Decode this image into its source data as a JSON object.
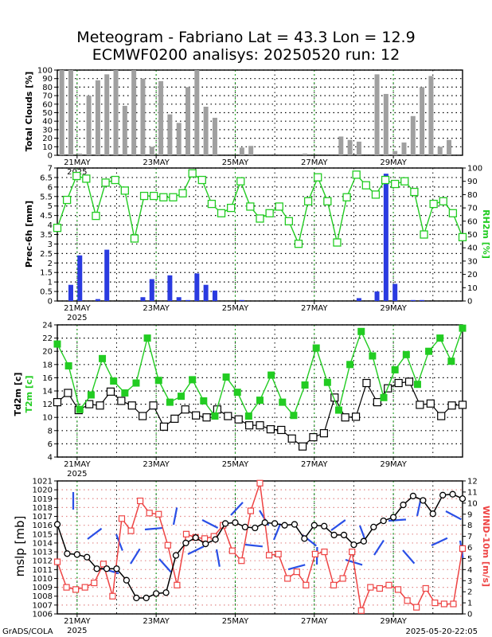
{
  "title_line1": "Meteogram - Fabriano Lat = 43.3 Lon = 12.9",
  "title_line2": "ECMWF0200 analisys: 20250520 run: 12",
  "footer_left": "GrADS/COLA",
  "footer_right": "2025-05-20-22:05",
  "colors": {
    "bars_gray": "#a0a0a0",
    "bars_blue": "#2a3be0",
    "green": "#22cc22",
    "red": "#ee4444",
    "black": "#000000",
    "wind": "#2a4fe6"
  },
  "x_axis": {
    "labels": [
      "21MAY",
      "23MAY",
      "25MAY",
      "27MAY",
      "29MAY"
    ],
    "label_day_index": [
      1,
      3,
      5,
      7,
      9
    ],
    "year": "2025",
    "steps_per_day": 4,
    "num_steps": 41
  },
  "chart_data": [
    {
      "type": "bar",
      "panel": "clouds",
      "ylabel": "Total Clouds [%]",
      "ylim": [
        0,
        100
      ],
      "yticks": [
        "0",
        "10",
        "20",
        "30",
        "40",
        "50",
        "60",
        "70",
        "80",
        "90",
        "100"
      ],
      "values": [
        100,
        100,
        2,
        70,
        88,
        95,
        100,
        58,
        100,
        90,
        10,
        87,
        48,
        38,
        80,
        100,
        57,
        44,
        0,
        0,
        9,
        11,
        0,
        0,
        0,
        0,
        0,
        2,
        0,
        0,
        0,
        22,
        18,
        16,
        0,
        95,
        72,
        5,
        15,
        46,
        80,
        93,
        10,
        18,
        0
      ]
    },
    {
      "type": "bar",
      "panel": "precip",
      "ylabel": "Prec-6h [mm]",
      "ylim": [
        0,
        7
      ],
      "yticks": [
        "0",
        "0.5",
        "1",
        "1.5",
        "2",
        "2.5",
        "3",
        "3.5",
        "4",
        "4.5",
        "5",
        "5.5",
        "6",
        "6.5",
        "7"
      ],
      "values": [
        0,
        0.85,
        2.4,
        0,
        0.1,
        2.7,
        0,
        0,
        0,
        0.2,
        1.15,
        0,
        1.35,
        0.2,
        0.05,
        1.45,
        0.85,
        0.55,
        0,
        0,
        0.05,
        0,
        0,
        0,
        0,
        0,
        0,
        0,
        0,
        0,
        0,
        0,
        0,
        0.15,
        0,
        0.5,
        6.7,
        0.9,
        0,
        0.05,
        0.05,
        0,
        0,
        0,
        0
      ]
    },
    {
      "type": "line",
      "panel": "rh",
      "series": [
        {
          "name": "RH2m [%]",
          "values": [
            55,
            76,
            94,
            92,
            64,
            89,
            91,
            83,
            47,
            79,
            79,
            78,
            78,
            81,
            96,
            91,
            73,
            66,
            70,
            90,
            71,
            62,
            66,
            71,
            60,
            43,
            75,
            93,
            75,
            44,
            78,
            95,
            87,
            80,
            91,
            88,
            90,
            82,
            50,
            73,
            75,
            66,
            48
          ]
        }
      ],
      "ylim": [
        0,
        100
      ],
      "yticks": [
        "0",
        "10",
        "20",
        "30",
        "40",
        "50",
        "60",
        "70",
        "80",
        "90",
        "100"
      ]
    },
    {
      "type": "line",
      "panel": "temperature",
      "ylabel_black": "Td2m [c]",
      "ylabel_green": "T2m [c]",
      "ylim": [
        4,
        24
      ],
      "yticks": [
        "4",
        "6",
        "8",
        "10",
        "12",
        "14",
        "16",
        "18",
        "20",
        "22",
        "24"
      ],
      "series": [
        {
          "name": "T2m",
          "values": [
            21.1,
            17.8,
            11.2,
            13.4,
            18.9,
            15.5,
            13.7,
            15.2,
            22.0,
            15.6,
            12.3,
            13.2,
            15.7,
            12.5,
            10.2,
            16.1,
            13.8,
            10.2,
            12.6,
            16.4,
            12.3,
            10.3,
            14.9,
            20.5,
            15.3,
            11.1,
            18.0,
            23.0,
            19.3,
            13.0,
            17.2,
            19.5,
            15.0,
            20.0,
            22.0,
            18.5,
            23.5
          ]
        },
        {
          "name": "Td2m",
          "values": [
            12.3,
            13.7,
            11.1,
            12.0,
            11.8,
            13.9,
            12.5,
            11.8,
            10.2,
            11.8,
            8.6,
            9.8,
            11.2,
            10.3,
            10.0,
            11.2,
            10.2,
            9.7,
            8.8,
            8.8,
            8.2,
            8.1,
            6.8,
            5.6,
            7.0,
            7.6,
            13.0,
            10.0,
            10.1,
            15.2,
            12.3,
            14.4,
            15.2,
            15.4,
            11.9,
            12.1,
            10.2,
            11.8,
            11.9
          ]
        }
      ]
    },
    {
      "type": "line",
      "panel": "pressure_wind",
      "ylabel_left": "mslp [mb]",
      "ylabel_right": "WIND-10m [m/s]",
      "ylim_left": [
        1006,
        1021
      ],
      "yticks_left": [
        "1006",
        "1007",
        "1008",
        "1009",
        "1010",
        "1011",
        "1012",
        "1013",
        "1014",
        "1015",
        "1016",
        "1017",
        "1018",
        "1019",
        "1020",
        "1021"
      ],
      "ylim_right": [
        0,
        12
      ],
      "yticks_right": [
        "0",
        "1",
        "2",
        "3",
        "4",
        "5",
        "6",
        "7",
        "8",
        "9",
        "10",
        "11",
        "12"
      ],
      "series": [
        {
          "name": "mslp",
          "values": [
            1016.1,
            1012.8,
            1012.7,
            1012.4,
            1011.1,
            1011.1,
            1011.1,
            1009.8,
            1007.8,
            1007.8,
            1008.3,
            1008.4,
            1012.6,
            1014.0,
            1014.6,
            1013.9,
            1014.4,
            1016.2,
            1016.3,
            1015.8,
            1015.7,
            1016.3,
            1016.2,
            1016.0,
            1016.1,
            1014.5,
            1016.0,
            1015.9,
            1014.9,
            1014.9,
            1013.8,
            1014.2,
            1015.8,
            1016.5,
            1016.9,
            1018.3,
            1019.3,
            1018.8,
            1017.3,
            1019.4,
            1019.5,
            1019.0
          ]
        },
        {
          "name": "WIND-10m",
          "values": [
            4.7,
            2.4,
            2.2,
            2.4,
            2.8,
            4.5,
            1.6,
            8.6,
            7.5,
            10.2,
            9.1,
            9.0,
            6.2,
            2.6,
            7.2,
            6.9,
            6.8,
            7.0,
            8.0,
            5.7,
            4.8,
            9.3,
            11.8,
            5.3,
            5.4,
            3.2,
            3.8,
            2.6,
            5.4,
            5.6,
            2.6,
            3.2,
            5.6,
            0.3,
            2.4,
            2.3,
            2.6,
            2.2,
            1.2,
            0.6,
            2.3,
            1.0,
            0.9,
            0.9,
            5.9
          ]
        }
      ]
    }
  ]
}
